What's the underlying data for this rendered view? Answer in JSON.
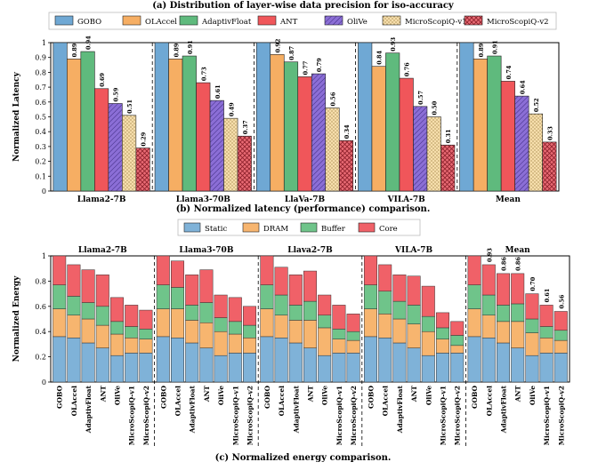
{
  "captions": {
    "a": "(a) Distribution of layer-wise data precision for iso-accuracy",
    "b": "(b) Normalized latency (performance)  comparison.",
    "c": "(c) Normalized energy comparison."
  },
  "colors": {
    "GOBO": "#6fa8d4",
    "OLAccel": "#f6ae63",
    "AdaptivFloat": "#5fba7d",
    "ANT": "#f0565a",
    "OliVe": "#8b6ed6",
    "MicroScopiQ-v1": "#f6deac",
    "MicroScopiQ-v2": "#e96b74",
    "Static": "#7fb2d8",
    "DRAM": "#f7b56f",
    "Buffer": "#6fc48a",
    "Core": "#f06168"
  },
  "chart_data": [
    {
      "type": "bar",
      "title": "",
      "xlabel": "",
      "ylabel": "Normalized Latency",
      "ylim": [
        0,
        1
      ],
      "yticks": [
        "0",
        "0.1",
        "0.2",
        "0.3",
        "0.4",
        "0.5",
        "0.6",
        "0.7",
        "0.8",
        "0.9",
        "1"
      ],
      "grid": false,
      "legend_position": "top",
      "categories": [
        "Llama2-7B",
        "Llama3-70B",
        "LlaVa-7B",
        "VILA-7B",
        "Mean"
      ],
      "series": [
        {
          "name": "GOBO",
          "values": [
            1.0,
            1.0,
            1.0,
            1.0,
            1.0
          ],
          "labels": [
            "",
            "",
            "",
            "",
            ""
          ]
        },
        {
          "name": "OLAccel",
          "values": [
            0.89,
            0.89,
            0.92,
            0.84,
            0.89
          ],
          "labels": [
            "0.89",
            "0.89",
            "0.92",
            "0.84",
            "0.89"
          ]
        },
        {
          "name": "AdaptivFloat",
          "values": [
            0.94,
            0.91,
            0.87,
            0.93,
            0.91
          ],
          "labels": [
            "0.94",
            "0.91",
            "0.87",
            "0.93",
            "0.91"
          ]
        },
        {
          "name": "ANT",
          "values": [
            0.69,
            0.73,
            0.77,
            0.76,
            0.74
          ],
          "labels": [
            "0.69",
            "0.73",
            "0.77",
            "0.76",
            "0.74"
          ]
        },
        {
          "name": "OliVe",
          "values": [
            0.59,
            0.61,
            0.79,
            0.57,
            0.64
          ],
          "labels": [
            "0.59",
            "0.61",
            "0.79",
            "0.57",
            "0.64"
          ]
        },
        {
          "name": "MicroScopiQ-v1",
          "values": [
            0.51,
            0.49,
            0.56,
            0.5,
            0.52
          ],
          "labels": [
            "0.51",
            "0.49",
            "0.56",
            "0.50",
            "0.52"
          ]
        },
        {
          "name": "MicroScopiQ-v2",
          "values": [
            0.29,
            0.37,
            0.34,
            0.31,
            0.33
          ],
          "labels": [
            "0.29",
            "0.37",
            "0.34",
            "0.31",
            "0.33"
          ]
        }
      ]
    },
    {
      "type": "bar",
      "stacked": true,
      "title": "",
      "xlabel": "",
      "ylabel": "Normalized Energy",
      "ylim": [
        0,
        1
      ],
      "yticks": [
        "0",
        "0.2",
        "0.4",
        "0.6",
        "0.8",
        "1"
      ],
      "grid": false,
      "legend_position": "top",
      "components": [
        "Static",
        "DRAM",
        "Buffer",
        "Core"
      ],
      "bar_labels": [
        "GOBO",
        "OLAccel",
        "AdaptivFloat",
        "ANT",
        "OliVe",
        "MicroScopiQ-v1",
        "MicroScopiQ-v2"
      ],
      "groups": [
        {
          "name": "Llama2-7B",
          "bars": [
            [
              0.36,
              0.22,
              0.19,
              0.23
            ],
            [
              0.35,
              0.18,
              0.15,
              0.25
            ],
            [
              0.31,
              0.19,
              0.13,
              0.26
            ],
            [
              0.27,
              0.18,
              0.15,
              0.25
            ],
            [
              0.21,
              0.17,
              0.1,
              0.19
            ],
            [
              0.23,
              0.12,
              0.09,
              0.17
            ],
            [
              0.23,
              0.11,
              0.08,
              0.15
            ]
          ],
          "totals": [
            "",
            "",
            "",
            "",
            "",
            "",
            ""
          ]
        },
        {
          "name": "Llama3-70B",
          "bars": [
            [
              0.36,
              0.22,
              0.19,
              0.23
            ],
            [
              0.35,
              0.23,
              0.17,
              0.21
            ],
            [
              0.31,
              0.18,
              0.12,
              0.24
            ],
            [
              0.27,
              0.2,
              0.16,
              0.26
            ],
            [
              0.21,
              0.19,
              0.11,
              0.18
            ],
            [
              0.23,
              0.15,
              0.1,
              0.19
            ],
            [
              0.23,
              0.12,
              0.1,
              0.15
            ]
          ],
          "totals": [
            "",
            "",
            "",
            "",
            "",
            "",
            ""
          ]
        },
        {
          "name": "Llava2-7B",
          "bars": [
            [
              0.36,
              0.22,
              0.19,
              0.23
            ],
            [
              0.35,
              0.18,
              0.16,
              0.22
            ],
            [
              0.31,
              0.18,
              0.12,
              0.24
            ],
            [
              0.27,
              0.22,
              0.15,
              0.24
            ],
            [
              0.21,
              0.22,
              0.1,
              0.16
            ],
            [
              0.23,
              0.11,
              0.08,
              0.19
            ],
            [
              0.23,
              0.1,
              0.07,
              0.14
            ]
          ],
          "totals": [
            "",
            "",
            "",
            "",
            "",
            "",
            ""
          ]
        },
        {
          "name": "VILA-7B",
          "bars": [
            [
              0.36,
              0.22,
              0.19,
              0.23
            ],
            [
              0.35,
              0.19,
              0.18,
              0.21
            ],
            [
              0.31,
              0.19,
              0.14,
              0.21
            ],
            [
              0.27,
              0.19,
              0.15,
              0.23
            ],
            [
              0.21,
              0.19,
              0.12,
              0.24
            ],
            [
              0.23,
              0.11,
              0.09,
              0.12
            ],
            [
              0.23,
              0.06,
              0.08,
              0.11
            ]
          ],
          "totals": [
            "",
            "",
            "",
            "",
            "",
            "",
            ""
          ]
        },
        {
          "name": "Mean",
          "bars": [
            [
              0.36,
              0.22,
              0.19,
              0.23
            ],
            [
              0.35,
              0.18,
              0.16,
              0.24
            ],
            [
              0.31,
              0.17,
              0.13,
              0.25
            ],
            [
              0.27,
              0.21,
              0.14,
              0.24
            ],
            [
              0.21,
              0.18,
              0.11,
              0.2
            ],
            [
              0.23,
              0.12,
              0.09,
              0.17
            ],
            [
              0.23,
              0.1,
              0.08,
              0.15
            ]
          ],
          "totals": [
            "",
            "0.93",
            "0.86",
            "0.86",
            "0.70",
            "0.61",
            "0.56"
          ]
        }
      ]
    }
  ]
}
